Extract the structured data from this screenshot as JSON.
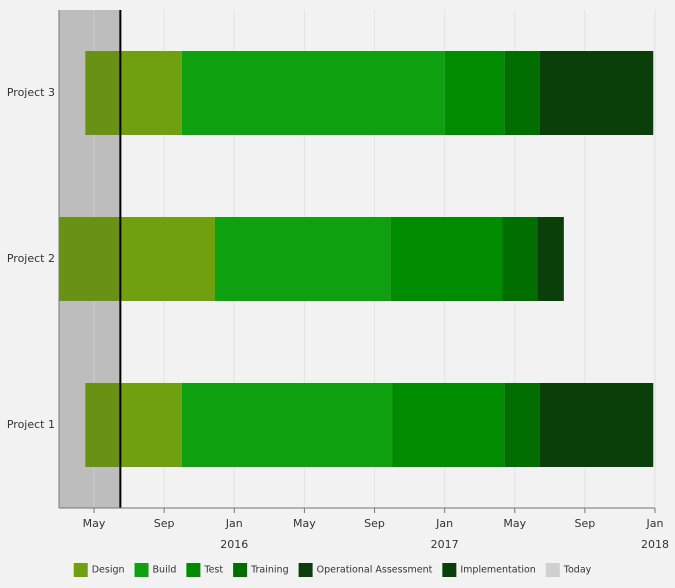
{
  "chart_data": {
    "type": "gantt",
    "categories": [
      "Project 1",
      "Project 2",
      "Project 3"
    ],
    "starts": [
      -8.5,
      -10,
      -8.5
    ],
    "series": [
      {
        "name": "Design",
        "color": "#709f0f",
        "values": [
          5.5,
          8.9,
          5.5
        ]
      },
      {
        "name": "Build",
        "color": "#0fa00f",
        "values": [
          12.0,
          10.0,
          15.0
        ]
      },
      {
        "name": "Test",
        "color": "#008c00",
        "values": [
          6.4,
          6.4,
          3.4
        ]
      },
      {
        "name": "Training",
        "color": "#006e00",
        "values": [
          2.0,
          2.0,
          2.0
        ]
      },
      {
        "name": "Operational Assessment",
        "color": "#0c3d0c",
        "values": [
          null,
          null,
          null
        ]
      },
      {
        "name": "Implementation",
        "color": "#0a3f0a",
        "values": [
          6.5,
          1.5,
          6.5
        ]
      }
    ],
    "today": {
      "name": "Today",
      "color": "#d0d0d0",
      "value": -6.5
    },
    "xlim": [
      -10,
      24
    ],
    "xticks": [
      {
        "value": -8,
        "label": "May"
      },
      {
        "value": -4,
        "label": "Sep"
      },
      {
        "value": 0,
        "label": "Jan"
      },
      {
        "value": 4,
        "label": "May"
      },
      {
        "value": 8,
        "label": "Sep"
      },
      {
        "value": 12,
        "label": "Jan"
      },
      {
        "value": 16,
        "label": "May"
      },
      {
        "value": 20,
        "label": "Sep"
      },
      {
        "value": 24,
        "label": "Jan"
      }
    ],
    "year_labels": [
      {
        "value": 0,
        "label": "2016"
      },
      {
        "value": 12,
        "label": "2017"
      },
      {
        "value": 24,
        "label": "2018"
      }
    ],
    "grid": true
  }
}
